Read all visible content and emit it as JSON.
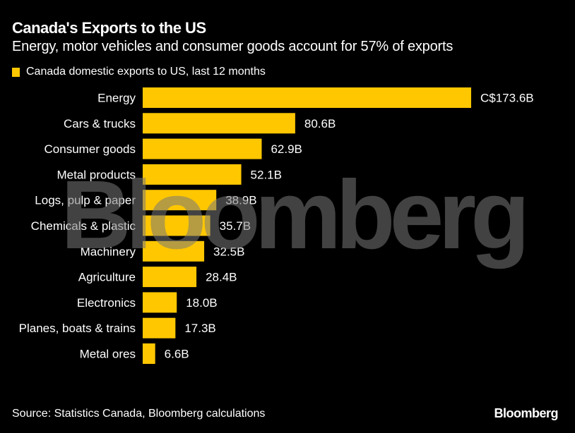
{
  "header": {
    "title": "Canada's Exports to the US",
    "subtitle": "Energy, motor vehicles and consumer goods account for 57% of exports"
  },
  "footer": {
    "source": "Source: Statistics Canada, Bloomberg calculations",
    "brand": "Bloomberg"
  },
  "watermark": "Bloomberg",
  "colors": {
    "bar": "#ffc700",
    "background": "#000000",
    "text": "#ffffff"
  },
  "chart_data": {
    "type": "bar",
    "orientation": "horizontal",
    "title": "Canada's Exports to the US",
    "subtitle": "Energy, motor vehicles and consumer goods account for 57% of exports",
    "legend": {
      "entries": [
        "Canada domestic exports to US, last 12 months"
      ],
      "position": "top-left"
    },
    "categories": [
      "Energy",
      "Cars & trucks",
      "Consumer goods",
      "Metal products",
      "Logs, pulp & paper",
      "Chemicals & plastic",
      "Machinery",
      "Agriculture",
      "Electronics",
      "Planes, boats & trains",
      "Metal ores"
    ],
    "series": [
      {
        "name": "Canada domestic exports to US, last 12 months",
        "values": [
          173.6,
          80.6,
          62.9,
          52.1,
          38.9,
          35.7,
          32.5,
          28.4,
          18.0,
          17.3,
          6.6
        ]
      }
    ],
    "value_labels": [
      "C$173.6B",
      "80.6B",
      "62.9B",
      "52.1B",
      "38.9B",
      "35.7B",
      "32.5B",
      "28.4B",
      "18.0B",
      "17.3B",
      "6.6B"
    ],
    "unit": "C$ billions",
    "xlabel": "",
    "ylabel": "",
    "xlim": [
      0,
      173.6
    ],
    "grid": false
  }
}
